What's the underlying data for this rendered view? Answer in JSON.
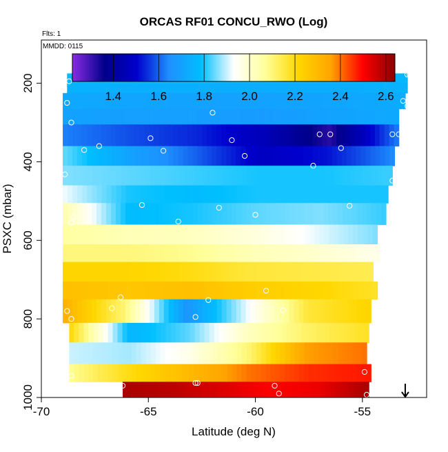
{
  "chart_data": {
    "type": "heatmap",
    "title": "ORCAS RF01 CONCU_RWO (Log)",
    "annotations": [
      "Flts: 1",
      "MMDD: 0115"
    ],
    "xlabel": "Latitude (deg N)",
    "ylabel": "PSXC (mbar)",
    "xlim": [
      -70,
      -52
    ],
    "ylim": [
      1000,
      90
    ],
    "y_reversed": true,
    "x_ticks": [
      -70,
      -65,
      -60,
      -55
    ],
    "y_ticks": [
      200,
      400,
      600,
      800,
      1000
    ],
    "x_tick_labels": [
      "-70",
      "-65",
      "-60",
      "-55"
    ],
    "y_tick_labels": [
      "200",
      "400",
      "600",
      "800",
      "1000"
    ],
    "grid": false,
    "colorbar": {
      "range": [
        1.22,
        2.64
      ],
      "ticks": [
        1.4,
        1.6,
        1.8,
        2.0,
        2.2,
        2.4,
        2.6
      ],
      "tick_labels": [
        "1.4",
        "1.6",
        "1.8",
        "2.0",
        "2.2",
        "2.4",
        "2.6"
      ],
      "placement": "top-inside",
      "colors": [
        "#8a2be2",
        "#00008b",
        "#0000cd",
        "#1e90ff",
        "#00bfff",
        "#ffffff",
        "#ffff99",
        "#ffd700",
        "#ffa500",
        "#ff0000",
        "#8b0000"
      ]
    },
    "bands": [
      {
        "p_top": 175,
        "p_bot": 200,
        "lat_start": -68.8,
        "lat_end": -52.9,
        "values": [
          1.78,
          1.78,
          1.79,
          1.78,
          1.77,
          1.76
        ]
      },
      {
        "p_top": 200,
        "p_bot": 225,
        "lat_start": -68.8,
        "lat_end": -52.9,
        "values": [
          1.75,
          1.74,
          1.74,
          1.73,
          1.73,
          1.75
        ]
      },
      {
        "p_top": 225,
        "p_bot": 265,
        "lat_start": -69.0,
        "lat_end": -53.0,
        "values": [
          1.72,
          1.71,
          1.7,
          1.7,
          1.71,
          1.73
        ]
      },
      {
        "p_top": 265,
        "p_bot": 305,
        "lat_start": -69.0,
        "lat_end": -53.3,
        "values": [
          1.7,
          1.69,
          1.69,
          1.68,
          1.7,
          1.72
        ]
      },
      {
        "p_top": 305,
        "p_bot": 360,
        "lat_start": -69.0,
        "lat_end": -53.3,
        "values": [
          1.63,
          1.58,
          1.54,
          1.46,
          1.32,
          1.62
        ]
      },
      {
        "p_top": 360,
        "p_bot": 410,
        "lat_start": -69.0,
        "lat_end": -53.5,
        "values": [
          1.84,
          1.7,
          1.6,
          1.48,
          1.52,
          1.64
        ]
      },
      {
        "p_top": 410,
        "p_bot": 460,
        "lat_start": -69.0,
        "lat_end": -53.6,
        "values": [
          1.86,
          1.84,
          1.82,
          1.8,
          1.8,
          1.82
        ]
      },
      {
        "p_top": 460,
        "p_bot": 505,
        "lat_start": -69.0,
        "lat_end": -53.8,
        "values": [
          1.92,
          1.8,
          1.78,
          1.8,
          1.8,
          1.8
        ]
      },
      {
        "p_top": 505,
        "p_bot": 560,
        "lat_start": -69.0,
        "lat_end": -53.9,
        "values": [
          2.04,
          1.78,
          1.8,
          1.84,
          1.86,
          1.82
        ]
      },
      {
        "p_top": 560,
        "p_bot": 610,
        "lat_start": -69.0,
        "lat_end": -54.3,
        "values": [
          2.06,
          2.03,
          2.02,
          1.98,
          1.92,
          1.86
        ]
      },
      {
        "p_top": 610,
        "p_bot": 655,
        "lat_start": -69.0,
        "lat_end": -54.2,
        "values": [
          2.1,
          2.1,
          2.08,
          2.03,
          2.0,
          1.96
        ]
      },
      {
        "p_top": 655,
        "p_bot": 705,
        "lat_start": -69.0,
        "lat_end": -54.5,
        "values": [
          2.22,
          2.22,
          2.2,
          2.16,
          2.15,
          2.14
        ]
      },
      {
        "p_top": 705,
        "p_bot": 750,
        "lat_start": -69.0,
        "lat_end": -54.3,
        "values": [
          2.28,
          2.26,
          2.28,
          2.24,
          2.22,
          2.18
        ]
      },
      {
        "p_top": 750,
        "p_bot": 810,
        "lat_start": -69.0,
        "lat_end": -54.6,
        "values": [
          2.32,
          2.1,
          1.66,
          1.92,
          2.16,
          2.22
        ]
      },
      {
        "p_top": 810,
        "p_bot": 860,
        "lat_start": -68.7,
        "lat_end": -54.7,
        "values": [
          2.2,
          1.76,
          1.84,
          2.02,
          2.12,
          2.18
        ]
      },
      {
        "p_top": 860,
        "p_bot": 915,
        "lat_start": -68.7,
        "lat_end": -54.8,
        "values": [
          1.9,
          1.88,
          1.96,
          2.1,
          2.36,
          2.4
        ]
      },
      {
        "p_top": 915,
        "p_bot": 960,
        "lat_start": -68.7,
        "lat_end": -54.6,
        "values": [
          2.08,
          2.2,
          2.3,
          2.4,
          2.46,
          2.48
        ]
      },
      {
        "p_top": 960,
        "p_bot": 1015,
        "lat_start": -66.2,
        "lat_end": -54.7,
        "values": [
          2.6,
          2.58,
          2.54,
          2.5,
          2.52,
          2.6
        ]
      }
    ],
    "points": [
      {
        "lat": -68.7,
        "p": 195
      },
      {
        "lat": -66.2,
        "p": 178
      },
      {
        "lat": -60.5,
        "p": 178
      },
      {
        "lat": -55.5,
        "p": 178
      },
      {
        "lat": -52.9,
        "p": 178
      },
      {
        "lat": -52.8,
        "p": 178
      },
      {
        "lat": -68.8,
        "p": 250
      },
      {
        "lat": -62.0,
        "p": 275
      },
      {
        "lat": -53.1,
        "p": 245
      },
      {
        "lat": -52.9,
        "p": 258
      },
      {
        "lat": -68.6,
        "p": 300
      },
      {
        "lat": -64.9,
        "p": 340
      },
      {
        "lat": -61.1,
        "p": 345
      },
      {
        "lat": -57.0,
        "p": 330
      },
      {
        "lat": -56.5,
        "p": 330
      },
      {
        "lat": -53.6,
        "p": 330
      },
      {
        "lat": -53.3,
        "p": 330
      },
      {
        "lat": -68.0,
        "p": 370
      },
      {
        "lat": -67.3,
        "p": 360
      },
      {
        "lat": -64.3,
        "p": 372
      },
      {
        "lat": -60.5,
        "p": 385
      },
      {
        "lat": -56.0,
        "p": 365
      },
      {
        "lat": -57.3,
        "p": 410
      },
      {
        "lat": -68.9,
        "p": 432
      },
      {
        "lat": -53.6,
        "p": 448
      },
      {
        "lat": -65.3,
        "p": 510
      },
      {
        "lat": -61.7,
        "p": 517
      },
      {
        "lat": -55.6,
        "p": 512
      },
      {
        "lat": -68.5,
        "p": 540
      },
      {
        "lat": -68.6,
        "p": 555
      },
      {
        "lat": -63.6,
        "p": 552
      },
      {
        "lat": -60.0,
        "p": 535
      },
      {
        "lat": -58.2,
        "p": 570
      },
      {
        "lat": -59.5,
        "p": 728
      },
      {
        "lat": -66.3,
        "p": 745
      },
      {
        "lat": -62.2,
        "p": 752
      },
      {
        "lat": -68.8,
        "p": 780
      },
      {
        "lat": -66.7,
        "p": 773
      },
      {
        "lat": -58.7,
        "p": 778
      },
      {
        "lat": -62.8,
        "p": 795
      },
      {
        "lat": -68.6,
        "p": 800
      },
      {
        "lat": -54.5,
        "p": 838
      },
      {
        "lat": -68.6,
        "p": 945
      },
      {
        "lat": -54.9,
        "p": 935
      },
      {
        "lat": -66.2,
        "p": 970
      },
      {
        "lat": -62.8,
        "p": 963
      },
      {
        "lat": -62.7,
        "p": 963
      },
      {
        "lat": -59.1,
        "p": 970
      },
      {
        "lat": -58.9,
        "p": 990
      },
      {
        "lat": -54.8,
        "p": 993
      }
    ],
    "arrow_marker": {
      "lat": -53.0,
      "direction": "down"
    }
  }
}
